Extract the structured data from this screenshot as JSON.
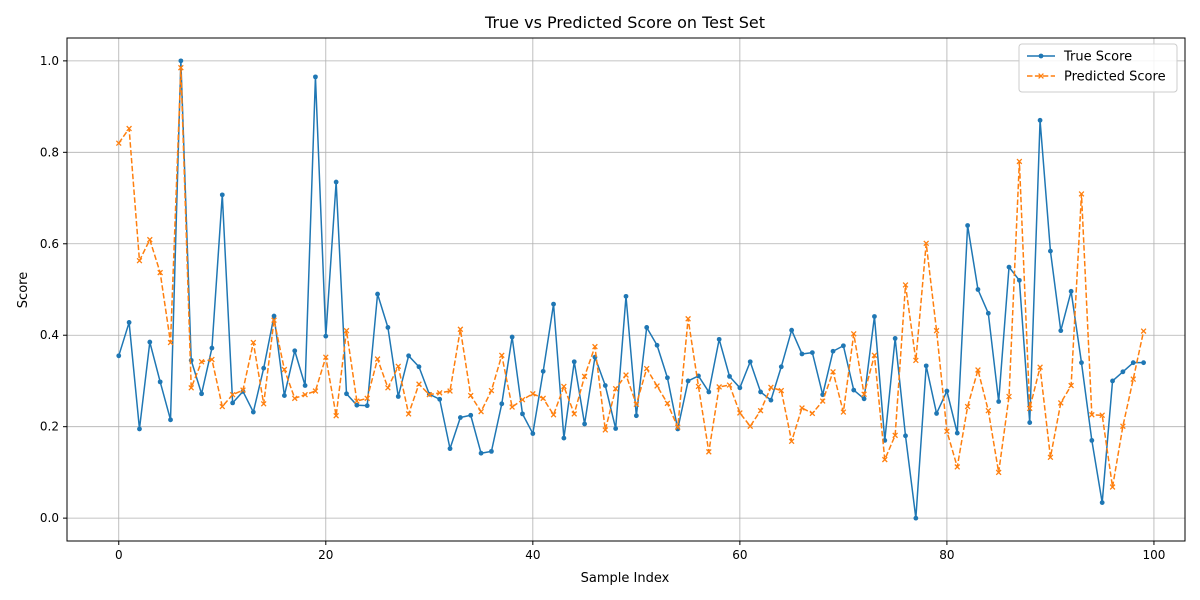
{
  "chart_data": {
    "type": "line",
    "title": "True vs Predicted Score on Test Set",
    "xlabel": "Sample Index",
    "ylabel": "Score",
    "xlim": [
      -5,
      103
    ],
    "ylim": [
      -0.05,
      1.05
    ],
    "xticks": [
      0,
      20,
      40,
      60,
      80,
      100
    ],
    "yticks": [
      0.0,
      0.2,
      0.4,
      0.6,
      0.8,
      1.0
    ],
    "xtick_labels": [
      "0",
      "20",
      "40",
      "60",
      "80",
      "100"
    ],
    "ytick_labels": [
      "0.0",
      "0.2",
      "0.4",
      "0.6",
      "0.8",
      "1.0"
    ],
    "grid": true,
    "legend_position": "top-right",
    "series": [
      {
        "name": "True Score",
        "color": "#1f77b4",
        "style": "solid",
        "marker": "circle",
        "x": [
          0,
          1,
          2,
          3,
          4,
          5,
          6,
          7,
          8,
          9,
          10,
          11,
          12,
          13,
          14,
          15,
          16,
          17,
          18,
          19,
          20,
          21,
          22,
          23,
          24,
          25,
          26,
          27,
          28,
          29,
          30,
          31,
          32,
          33,
          34,
          35,
          36,
          37,
          38,
          39,
          40,
          41,
          42,
          43,
          44,
          45,
          46,
          47,
          48,
          49,
          50,
          51,
          52,
          53,
          54,
          55,
          56,
          57,
          58,
          59,
          60,
          61,
          62,
          63,
          64,
          65,
          66,
          67,
          68,
          69,
          70,
          71,
          72,
          73,
          74,
          75,
          76,
          77,
          78,
          79,
          80,
          81,
          82,
          83,
          84,
          85,
          86,
          87,
          88,
          89,
          90,
          91,
          92,
          93,
          94,
          95,
          96,
          97,
          98,
          99
        ],
        "values": [
          0.355,
          0.428,
          0.195,
          0.385,
          0.298,
          0.215,
          1.0,
          0.345,
          0.272,
          0.372,
          0.707,
          0.252,
          0.277,
          0.232,
          0.328,
          0.442,
          0.268,
          0.366,
          0.29,
          0.965,
          0.398,
          0.735,
          0.272,
          0.247,
          0.246,
          0.49,
          0.417,
          0.266,
          0.355,
          0.331,
          0.271,
          0.26,
          0.152,
          0.22,
          0.225,
          0.142,
          0.146,
          0.25,
          0.396,
          0.228,
          0.185,
          0.321,
          0.468,
          0.175,
          0.342,
          0.206,
          0.352,
          0.29,
          0.196,
          0.485,
          0.224,
          0.417,
          0.378,
          0.307,
          0.195,
          0.3,
          0.311,
          0.276,
          0.391,
          0.31,
          0.285,
          0.342,
          0.276,
          0.258,
          0.331,
          0.411,
          0.359,
          0.362,
          0.27,
          0.365,
          0.377,
          0.28,
          0.261,
          0.441,
          0.17,
          0.393,
          0.18,
          0.0,
          0.333,
          0.229,
          0.278,
          0.186,
          0.64,
          0.5,
          0.448,
          0.255,
          0.549,
          0.52,
          0.209,
          0.87,
          0.584,
          0.41,
          0.496,
          0.34,
          0.17,
          0.034,
          0.3,
          0.32,
          0.34,
          0.34
        ]
      },
      {
        "name": "Predicted Score",
        "color": "#ff7f0e",
        "style": "dashed",
        "marker": "x",
        "x": [
          0,
          1,
          2,
          3,
          4,
          5,
          6,
          7,
          8,
          9,
          10,
          11,
          12,
          13,
          14,
          15,
          16,
          17,
          18,
          19,
          20,
          21,
          22,
          23,
          24,
          25,
          26,
          27,
          28,
          29,
          30,
          31,
          32,
          33,
          34,
          35,
          36,
          37,
          38,
          39,
          40,
          41,
          42,
          43,
          44,
          45,
          46,
          47,
          48,
          49,
          50,
          51,
          52,
          53,
          54,
          55,
          56,
          57,
          58,
          59,
          60,
          61,
          62,
          63,
          64,
          65,
          66,
          67,
          68,
          69,
          70,
          71,
          72,
          73,
          74,
          75,
          76,
          77,
          78,
          79,
          80,
          81,
          82,
          83,
          84,
          85,
          86,
          87,
          88,
          89,
          90,
          91,
          92,
          93,
          94,
          95,
          96,
          97,
          98,
          99
        ],
        "values": [
          0.82,
          0.852,
          0.563,
          0.609,
          0.537,
          0.384,
          0.985,
          0.285,
          0.342,
          0.347,
          0.244,
          0.27,
          0.28,
          0.384,
          0.25,
          0.433,
          0.325,
          0.262,
          0.27,
          0.278,
          0.352,
          0.224,
          0.41,
          0.256,
          0.262,
          0.348,
          0.285,
          0.332,
          0.228,
          0.293,
          0.27,
          0.274,
          0.278,
          0.413,
          0.268,
          0.233,
          0.279,
          0.356,
          0.243,
          0.259,
          0.272,
          0.262,
          0.226,
          0.288,
          0.228,
          0.31,
          0.375,
          0.193,
          0.283,
          0.313,
          0.249,
          0.327,
          0.289,
          0.251,
          0.199,
          0.436,
          0.288,
          0.145,
          0.287,
          0.291,
          0.23,
          0.201,
          0.235,
          0.286,
          0.279,
          0.168,
          0.241,
          0.229,
          0.256,
          0.32,
          0.232,
          0.403,
          0.271,
          0.356,
          0.128,
          0.181,
          0.51,
          0.345,
          0.601,
          0.41,
          0.19,
          0.112,
          0.244,
          0.324,
          0.235,
          0.1,
          0.266,
          0.78,
          0.24,
          0.33,
          0.133,
          0.252,
          0.29,
          0.709,
          0.226,
          0.225,
          0.068,
          0.201,
          0.304,
          0.409
        ]
      }
    ]
  }
}
